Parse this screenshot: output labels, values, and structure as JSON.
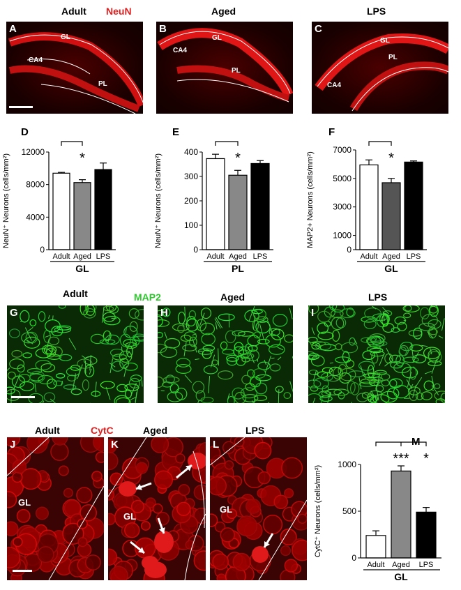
{
  "row1": {
    "headers": [
      "Adult",
      "Aged",
      "LPS"
    ],
    "stain": "NeuN",
    "panels": [
      {
        "letter": "A",
        "labels": [
          "GL",
          "CA4",
          "PL"
        ]
      },
      {
        "letter": "B",
        "labels": [
          "GL",
          "CA4",
          "PL"
        ]
      },
      {
        "letter": "C",
        "labels": [
          "GL",
          "PL",
          "CA4"
        ]
      }
    ]
  },
  "charts": [
    {
      "letter": "D",
      "type": "bar",
      "categories": [
        "Adult",
        "Aged",
        "LPS"
      ],
      "values": [
        9400,
        8250,
        9850
      ],
      "errors": [
        100,
        350,
        800
      ],
      "ylabel": "NeuN⁺ Neurons (cells/mm²)",
      "yticks": [
        "0",
        "4000",
        "8000",
        "12000"
      ],
      "ylim": [
        0,
        12000
      ],
      "xlabel": "GL",
      "sig": "*",
      "colors": [
        "#ffffff",
        "#888888",
        "#000000"
      ]
    },
    {
      "letter": "E",
      "type": "bar",
      "categories": [
        "Adult",
        "Aged",
        "LPS"
      ],
      "values": [
        373,
        305,
        353
      ],
      "errors": [
        18,
        20,
        12
      ],
      "ylabel": "NeuN⁺ Neurons (cells/mm²)",
      "yticks": [
        "0",
        "100",
        "200",
        "300",
        "400"
      ],
      "ylim": [
        0,
        400
      ],
      "xlabel": "PL",
      "sig": "*",
      "colors": [
        "#ffffff",
        "#888888",
        "#000000"
      ]
    },
    {
      "letter": "F",
      "type": "bar",
      "categories": [
        "Adult",
        "Aged",
        "LPS"
      ],
      "values": [
        5950,
        4700,
        6150
      ],
      "errors": [
        350,
        300,
        80
      ],
      "ylabel": "MAP2+ Neurons (cells/mm²)",
      "yticks": [
        "0",
        "1000",
        "3000",
        "5000",
        "7000"
      ],
      "ylim": [
        0,
        7000
      ],
      "xlabel": "GL",
      "sig": "*",
      "colors": [
        "#ffffff",
        "#555555",
        "#000000"
      ]
    },
    {
      "letter": "M",
      "type": "bar",
      "categories": [
        "Adult",
        "Aged",
        "LPS"
      ],
      "values": [
        240,
        930,
        490
      ],
      "errors": [
        50,
        55,
        50
      ],
      "ylabel": "CytC⁺ Neurons (cells/mm²)",
      "yticks": [
        "0",
        "500",
        "1000"
      ],
      "ylim": [
        0,
        1000
      ],
      "xlabel": "GL",
      "sig_labels": [
        "***",
        "*"
      ],
      "colors": [
        "#ffffff",
        "#888888",
        "#000000"
      ]
    }
  ],
  "row3": {
    "headers": [
      "Adult",
      "Aged",
      "LPS"
    ],
    "stain": "MAP2",
    "letters": [
      "G",
      "H",
      "I"
    ]
  },
  "row4": {
    "headers": [
      "Adult",
      "Aged",
      "LPS"
    ],
    "stain": "CytC",
    "letters": [
      "J",
      "K",
      "L"
    ],
    "gl_label": "GL"
  },
  "colors": {
    "neun": "#e02020",
    "map2": "#2ec82e",
    "cytc": "#e02020"
  }
}
